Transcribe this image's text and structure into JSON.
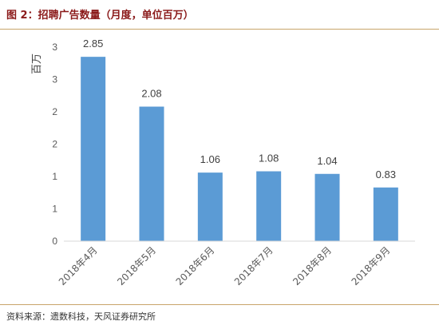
{
  "title": "图 2：招聘广告数量（月度，单位百万）",
  "source": "资料来源：遗数科技，天风证券研究所",
  "colors": {
    "bar": "#5b9bd5",
    "title": "#8b1a1a",
    "rule": "#c8a46a",
    "axis": "#d9d9d9"
  },
  "chart_data": {
    "type": "bar",
    "categories": [
      "2018年4月",
      "2018年5月",
      "2018年6月",
      "2018年7月",
      "2018年8月",
      "2018年9月"
    ],
    "values": [
      2.85,
      2.08,
      1.06,
      1.08,
      1.04,
      0.83
    ],
    "data_labels": [
      "2.85",
      "2.08",
      "1.06",
      "1.08",
      "1.04",
      "0.83"
    ],
    "ylabel": "百万",
    "ylim": [
      0,
      3.0
    ],
    "y_ticks": [
      0,
      0.5,
      1.0,
      1.5,
      2.0,
      2.5,
      3.0
    ],
    "y_tick_labels": [
      "0",
      "1",
      "1",
      "2",
      "2",
      "3",
      "3"
    ],
    "grid": false,
    "legend": "none"
  }
}
